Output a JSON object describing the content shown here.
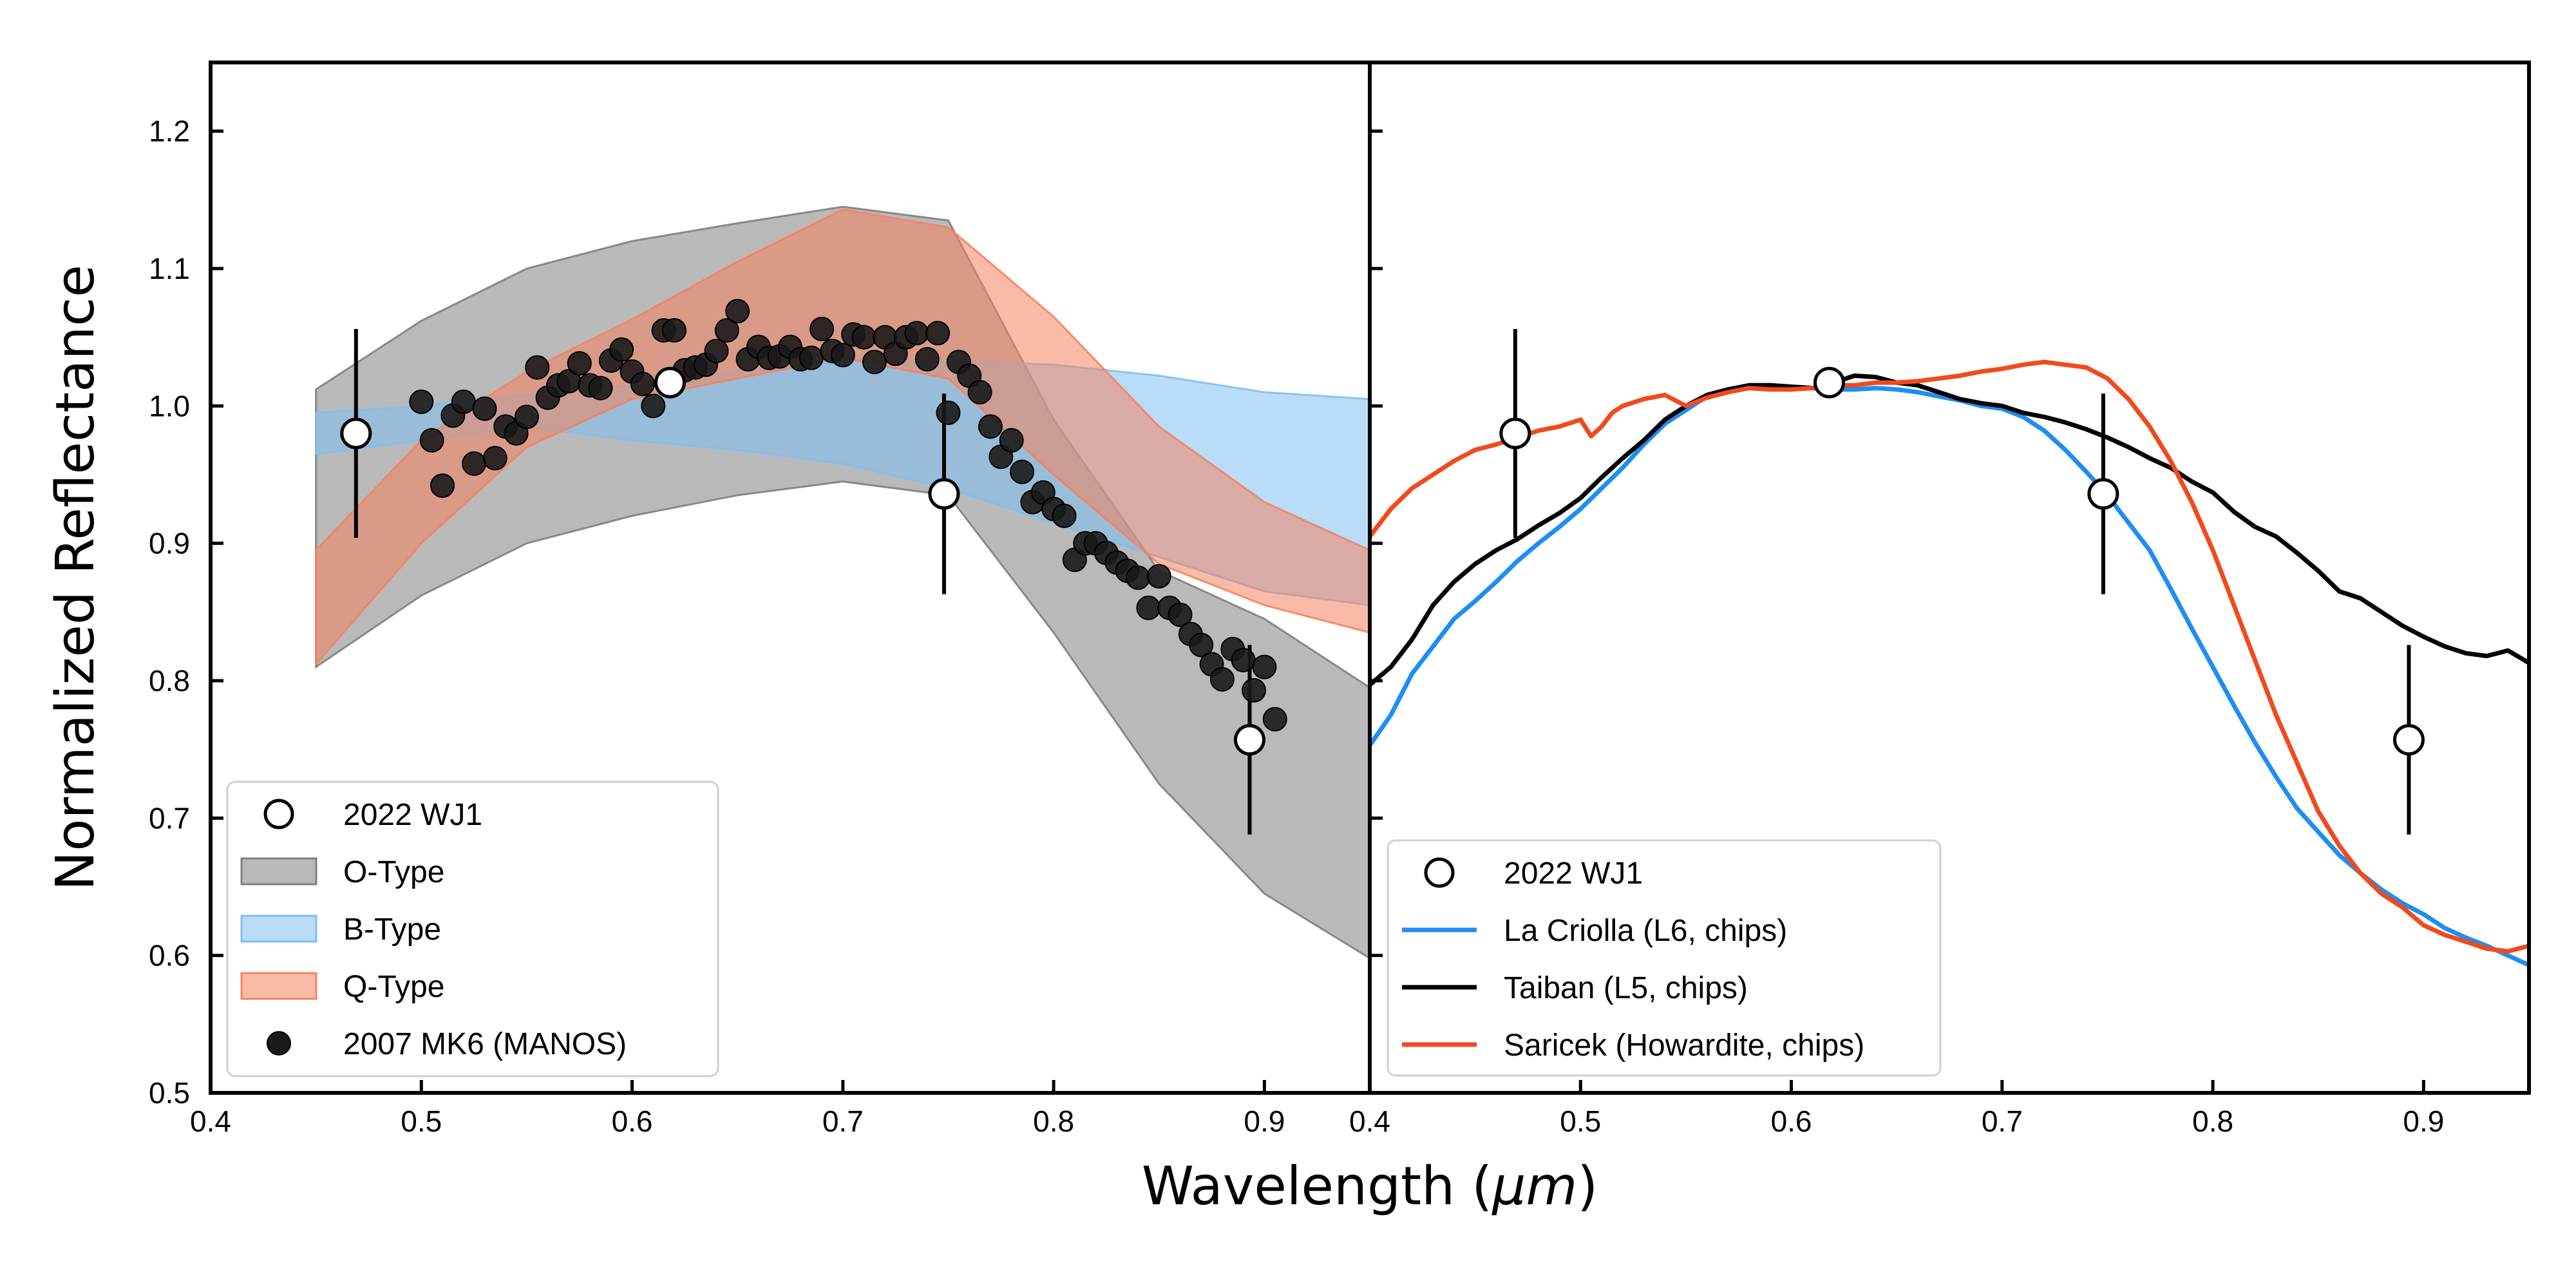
{
  "chart_data": [
    {
      "type": "scatter",
      "panel": "left",
      "xlabel_prefix": "Wavelength (",
      "xlabel_unit": "μm",
      "xlabel_suffix": ")",
      "ylabel": "Normalized Reflectance",
      "xlim": [
        0.4,
        0.95
      ],
      "ylim": [
        0.5,
        1.25
      ],
      "xticks": [
        "0.4",
        "0.5",
        "0.6",
        "0.7",
        "0.8",
        "0.9"
      ],
      "yticks": [
        "0.5",
        "0.6",
        "0.7",
        "0.8",
        "0.9",
        "1.0",
        "1.1",
        "1.2"
      ],
      "legend_position": "bottom-left",
      "bands": [
        {
          "name": "O-Type",
          "color": "#808080",
          "x": [
            0.45,
            0.5,
            0.55,
            0.6,
            0.65,
            0.7,
            0.75,
            0.8,
            0.85,
            0.9,
            0.95
          ],
          "upper": [
            1.012,
            1.062,
            1.1,
            1.12,
            1.133,
            1.145,
            1.135,
            0.99,
            0.88,
            0.845,
            0.795
          ],
          "lower": [
            0.81,
            0.862,
            0.9,
            0.92,
            0.935,
            0.945,
            0.935,
            0.835,
            0.725,
            0.645,
            0.598
          ]
        },
        {
          "name": "B-Type",
          "color": "#7fbff2",
          "x": [
            0.45,
            0.5,
            0.55,
            0.6,
            0.65,
            0.7,
            0.75,
            0.8,
            0.85,
            0.9,
            0.95
          ],
          "upper": [
            0.995,
            1.0,
            1.008,
            1.015,
            1.025,
            1.032,
            1.033,
            1.03,
            1.022,
            1.01,
            1.005
          ],
          "lower": [
            0.965,
            0.975,
            0.985,
            0.975,
            0.968,
            0.958,
            0.94,
            0.915,
            0.89,
            0.865,
            0.855
          ]
        },
        {
          "name": "Q-Type",
          "color": "#f4845f",
          "x": [
            0.45,
            0.5,
            0.55,
            0.6,
            0.65,
            0.7,
            0.75,
            0.8,
            0.85,
            0.9,
            0.95
          ],
          "upper": [
            0.895,
            0.975,
            1.025,
            1.063,
            1.105,
            1.143,
            1.13,
            1.065,
            0.985,
            0.93,
            0.895
          ],
          "lower": [
            0.812,
            0.9,
            0.97,
            1.005,
            1.02,
            1.035,
            1.02,
            0.95,
            0.885,
            0.855,
            0.835
          ]
        }
      ],
      "series": [
        {
          "name": "2022 WJ1",
          "marker": "open-circle",
          "x": [
            0.469,
            0.618,
            0.748,
            0.893
          ],
          "y": [
            0.98,
            1.017,
            0.936,
            0.757
          ],
          "yerr": [
            0.076,
            0.0,
            0.073,
            0.069
          ]
        },
        {
          "name": "2007 MK6 (MANOS)",
          "marker": "filled-circle",
          "color": "#1a1a1a",
          "x": [
            0.5,
            0.505,
            0.51,
            0.515,
            0.52,
            0.525,
            0.53,
            0.535,
            0.54,
            0.545,
            0.55,
            0.555,
            0.56,
            0.565,
            0.57,
            0.575,
            0.58,
            0.585,
            0.59,
            0.595,
            0.6,
            0.605,
            0.61,
            0.615,
            0.62,
            0.625,
            0.63,
            0.635,
            0.64,
            0.645,
            0.65,
            0.655,
            0.66,
            0.665,
            0.67,
            0.675,
            0.68,
            0.685,
            0.69,
            0.695,
            0.7,
            0.705,
            0.71,
            0.715,
            0.72,
            0.725,
            0.73,
            0.735,
            0.74,
            0.745,
            0.75,
            0.755,
            0.76,
            0.765,
            0.77,
            0.775,
            0.78,
            0.785,
            0.79,
            0.795,
            0.8,
            0.805,
            0.81,
            0.815,
            0.82,
            0.825,
            0.83,
            0.835,
            0.84,
            0.845,
            0.85,
            0.855,
            0.86,
            0.865,
            0.87,
            0.875,
            0.88,
            0.885,
            0.89,
            0.895,
            0.9,
            0.905
          ],
          "y": [
            1.003,
            0.975,
            0.942,
            0.993,
            1.003,
            0.958,
            0.998,
            0.962,
            0.985,
            0.98,
            0.992,
            1.028,
            1.006,
            1.015,
            1.018,
            1.031,
            1.015,
            1.013,
            1.033,
            1.041,
            1.025,
            1.016,
            1.0,
            1.055,
            1.055,
            1.026,
            1.028,
            1.03,
            1.04,
            1.055,
            1.069,
            1.034,
            1.043,
            1.035,
            1.036,
            1.043,
            1.034,
            1.035,
            1.056,
            1.04,
            1.037,
            1.052,
            1.05,
            1.032,
            1.05,
            1.038,
            1.05,
            1.053,
            1.034,
            1.053,
            0.995,
            1.032,
            1.022,
            1.01,
            0.985,
            0.963,
            0.975,
            0.952,
            0.93,
            0.937,
            0.925,
            0.92,
            0.888,
            0.9,
            0.9,
            0.893,
            0.886,
            0.88,
            0.875,
            0.853,
            0.876,
            0.853,
            0.848,
            0.834,
            0.826,
            0.812,
            0.801,
            0.823,
            0.815,
            0.793,
            0.81,
            0.772
          ]
        }
      ]
    },
    {
      "type": "line",
      "panel": "right",
      "xlim": [
        0.4,
        0.95
      ],
      "ylim": [
        0.5,
        1.25
      ],
      "xticks": [
        "0.4",
        "0.5",
        "0.6",
        "0.7",
        "0.8",
        "0.9"
      ],
      "legend_position": "bottom-center",
      "series": [
        {
          "name": "2022 WJ1",
          "marker": "open-circle",
          "x": [
            0.469,
            0.618,
            0.748,
            0.893
          ],
          "y": [
            0.98,
            1.017,
            0.936,
            0.757
          ],
          "yerr": [
            0.076,
            0.0,
            0.073,
            0.069
          ]
        },
        {
          "name": "La Criolla (L6, chips)",
          "color": "#1f8ef1",
          "x": [
            0.4,
            0.41,
            0.42,
            0.43,
            0.44,
            0.45,
            0.46,
            0.47,
            0.48,
            0.49,
            0.5,
            0.51,
            0.52,
            0.53,
            0.54,
            0.55,
            0.56,
            0.57,
            0.58,
            0.59,
            0.6,
            0.61,
            0.62,
            0.63,
            0.64,
            0.65,
            0.66,
            0.67,
            0.68,
            0.69,
            0.7,
            0.71,
            0.72,
            0.73,
            0.74,
            0.75,
            0.76,
            0.77,
            0.78,
            0.79,
            0.8,
            0.81,
            0.82,
            0.83,
            0.84,
            0.85,
            0.86,
            0.87,
            0.88,
            0.89,
            0.9,
            0.91,
            0.92,
            0.93,
            0.94,
            0.95
          ],
          "y": [
            0.753,
            0.775,
            0.805,
            0.825,
            0.845,
            0.858,
            0.872,
            0.887,
            0.9,
            0.912,
            0.925,
            0.94,
            0.955,
            0.972,
            0.987,
            0.997,
            1.007,
            1.012,
            1.015,
            1.015,
            1.014,
            1.013,
            1.012,
            1.012,
            1.013,
            1.012,
            1.01,
            1.007,
            1.004,
            1.0,
            0.998,
            0.992,
            0.982,
            0.968,
            0.952,
            0.935,
            0.915,
            0.895,
            0.867,
            0.838,
            0.81,
            0.782,
            0.755,
            0.73,
            0.707,
            0.69,
            0.673,
            0.66,
            0.648,
            0.638,
            0.63,
            0.62,
            0.613,
            0.607,
            0.6,
            0.593
          ]
        },
        {
          "name": "Taiban (L5, chips)",
          "color": "#000000",
          "x": [
            0.4,
            0.41,
            0.42,
            0.43,
            0.44,
            0.45,
            0.46,
            0.47,
            0.48,
            0.49,
            0.5,
            0.51,
            0.52,
            0.53,
            0.54,
            0.55,
            0.56,
            0.57,
            0.58,
            0.59,
            0.6,
            0.61,
            0.62,
            0.63,
            0.64,
            0.65,
            0.66,
            0.67,
            0.68,
            0.69,
            0.7,
            0.71,
            0.72,
            0.73,
            0.74,
            0.75,
            0.76,
            0.77,
            0.78,
            0.79,
            0.8,
            0.81,
            0.82,
            0.83,
            0.84,
            0.85,
            0.86,
            0.87,
            0.88,
            0.89,
            0.9,
            0.91,
            0.92,
            0.93,
            0.94,
            0.95
          ],
          "y": [
            0.797,
            0.81,
            0.83,
            0.855,
            0.872,
            0.885,
            0.895,
            0.903,
            0.913,
            0.922,
            0.933,
            0.948,
            0.962,
            0.975,
            0.99,
            1.0,
            1.008,
            1.012,
            1.015,
            1.015,
            1.014,
            1.013,
            1.017,
            1.022,
            1.021,
            1.017,
            1.015,
            1.01,
            1.005,
            1.002,
            1.0,
            0.995,
            0.992,
            0.988,
            0.983,
            0.977,
            0.97,
            0.962,
            0.955,
            0.945,
            0.937,
            0.923,
            0.912,
            0.905,
            0.893,
            0.88,
            0.865,
            0.86,
            0.85,
            0.84,
            0.832,
            0.825,
            0.82,
            0.818,
            0.822,
            0.813
          ]
        },
        {
          "name": "Saricek (Howardite, chips)",
          "color": "#f04a1d",
          "x": [
            0.4,
            0.41,
            0.42,
            0.43,
            0.44,
            0.45,
            0.46,
            0.47,
            0.48,
            0.49,
            0.5,
            0.505,
            0.51,
            0.515,
            0.52,
            0.53,
            0.54,
            0.55,
            0.56,
            0.57,
            0.58,
            0.59,
            0.6,
            0.61,
            0.62,
            0.63,
            0.64,
            0.65,
            0.66,
            0.67,
            0.68,
            0.69,
            0.7,
            0.71,
            0.72,
            0.73,
            0.74,
            0.75,
            0.76,
            0.77,
            0.78,
            0.79,
            0.8,
            0.81,
            0.82,
            0.83,
            0.84,
            0.85,
            0.86,
            0.87,
            0.88,
            0.89,
            0.9,
            0.91,
            0.92,
            0.93,
            0.94,
            0.95
          ],
          "y": [
            0.905,
            0.925,
            0.94,
            0.95,
            0.96,
            0.968,
            0.972,
            0.977,
            0.982,
            0.985,
            0.99,
            0.978,
            0.985,
            0.995,
            1.0,
            1.005,
            1.008,
            1.0,
            1.006,
            1.01,
            1.013,
            1.012,
            1.012,
            1.013,
            1.015,
            1.015,
            1.017,
            1.017,
            1.018,
            1.02,
            1.022,
            1.025,
            1.027,
            1.03,
            1.032,
            1.03,
            1.028,
            1.02,
            1.005,
            0.985,
            0.96,
            0.93,
            0.895,
            0.855,
            0.815,
            0.775,
            0.74,
            0.705,
            0.68,
            0.66,
            0.645,
            0.635,
            0.622,
            0.615,
            0.61,
            0.605,
            0.603,
            0.607
          ]
        }
      ]
    }
  ]
}
